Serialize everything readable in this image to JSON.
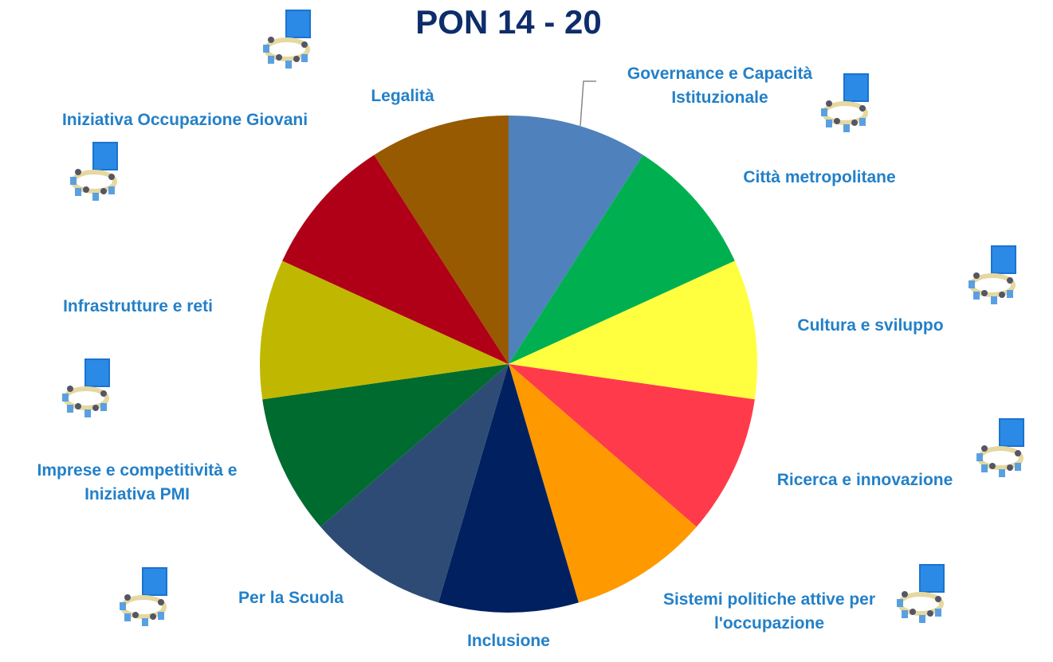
{
  "chart_data": {
    "type": "pie",
    "title": "PON 14 - 20",
    "categories": [
      "Governance e Capacità Istituzionale",
      "Città metropolitane",
      "Cultura e sviluppo",
      "Ricerca e innovazione",
      "Sistemi politiche attive per l'occupazione",
      "Inclusione",
      "Per la Scuola",
      "Imprese e competitività e Iniziativa PMI",
      "Infrastrutture e reti",
      "Iniziativa Occupazione Giovani",
      "Legalità"
    ],
    "values": [
      1,
      1,
      1,
      1,
      1,
      1,
      1,
      1,
      1,
      1,
      1
    ],
    "colors": [
      "#4f81bd",
      "#00b050",
      "#ffff40",
      "#ff3b4b",
      "#ff9900",
      "#002060",
      "#2e4b75",
      "#006b2f",
      "#c0b800",
      "#b00018",
      "#975a00"
    ]
  }
}
